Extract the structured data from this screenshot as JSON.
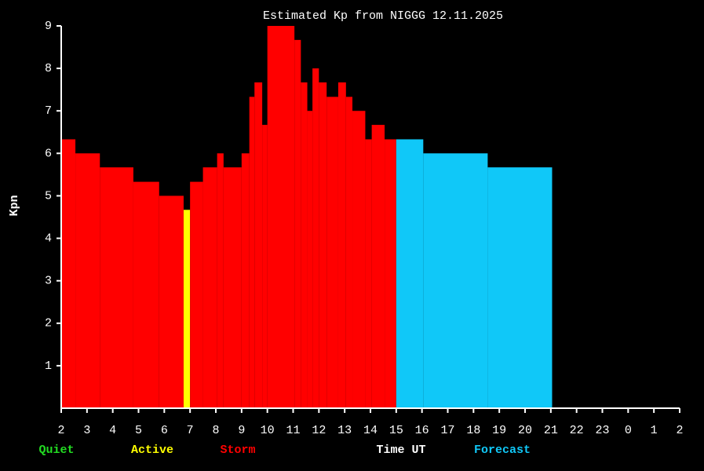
{
  "chart_data": {
    "type": "histogram",
    "title": "Estimated Kp from NIGGG 12.11.2025",
    "ylabel": "Kpn",
    "xlabel": "Time UT",
    "legend": [
      {
        "name": "Quiet",
        "color": "#22dd22"
      },
      {
        "name": "Active",
        "color": "#ffff00"
      },
      {
        "name": "Storm",
        "color": "#ff0000"
      },
      {
        "name": "Forecast",
        "color": "#10c8f8"
      }
    ],
    "bins": [
      2,
      2.55,
      3.5,
      4.8,
      5.8,
      6.75,
      7,
      7.5,
      8.05,
      8.3,
      9,
      9.3,
      9.5,
      9.8,
      10,
      11.05,
      11.3,
      11.55,
      11.75,
      12,
      12.3,
      12.75,
      13.05,
      13.3,
      13.8,
      14.05,
      14.55,
      15,
      16.05,
      18.55,
      21.05
    ],
    "values": [
      6.33,
      6,
      5.67,
      5.33,
      5,
      4.67,
      5.33,
      5.67,
      6,
      5.67,
      6,
      7.33,
      7.67,
      6.67,
      9,
      8.67,
      7.67,
      7,
      8,
      7.67,
      7.33,
      7.67,
      7.33,
      7,
      6.33,
      6.67,
      6.33,
      6.33,
      6,
      5.67
    ],
    "colors": [
      "#ff0000",
      "#ff0000",
      "#ff0000",
      "#ff0000",
      "#ff0000",
      "#ffff00",
      "#ff0000",
      "#ff0000",
      "#ff0000",
      "#ff0000",
      "#ff0000",
      "#ff0000",
      "#ff0000",
      "#ff0000",
      "#ff0000",
      "#ff0000",
      "#ff0000",
      "#ff0000",
      "#ff0000",
      "#ff0000",
      "#ff0000",
      "#ff0000",
      "#ff0000",
      "#ff0000",
      "#ff0000",
      "#ff0000",
      "#ff0000",
      "#10c8f8",
      "#10c8f8",
      "#10c8f8"
    ],
    "xlim": [
      2,
      26
    ],
    "xticks": [
      2,
      3,
      4,
      5,
      6,
      7,
      8,
      9,
      10,
      11,
      12,
      13,
      14,
      15,
      16,
      17,
      18,
      19,
      20,
      21,
      22,
      23,
      {
        "value": 24,
        "label": "0"
      },
      {
        "value": 25,
        "label": "1"
      },
      {
        "value": 26,
        "label": "2"
      }
    ],
    "ylim": [
      0,
      9
    ],
    "yticks": [
      1,
      2,
      3,
      4,
      5,
      6,
      7,
      8,
      9
    ]
  }
}
